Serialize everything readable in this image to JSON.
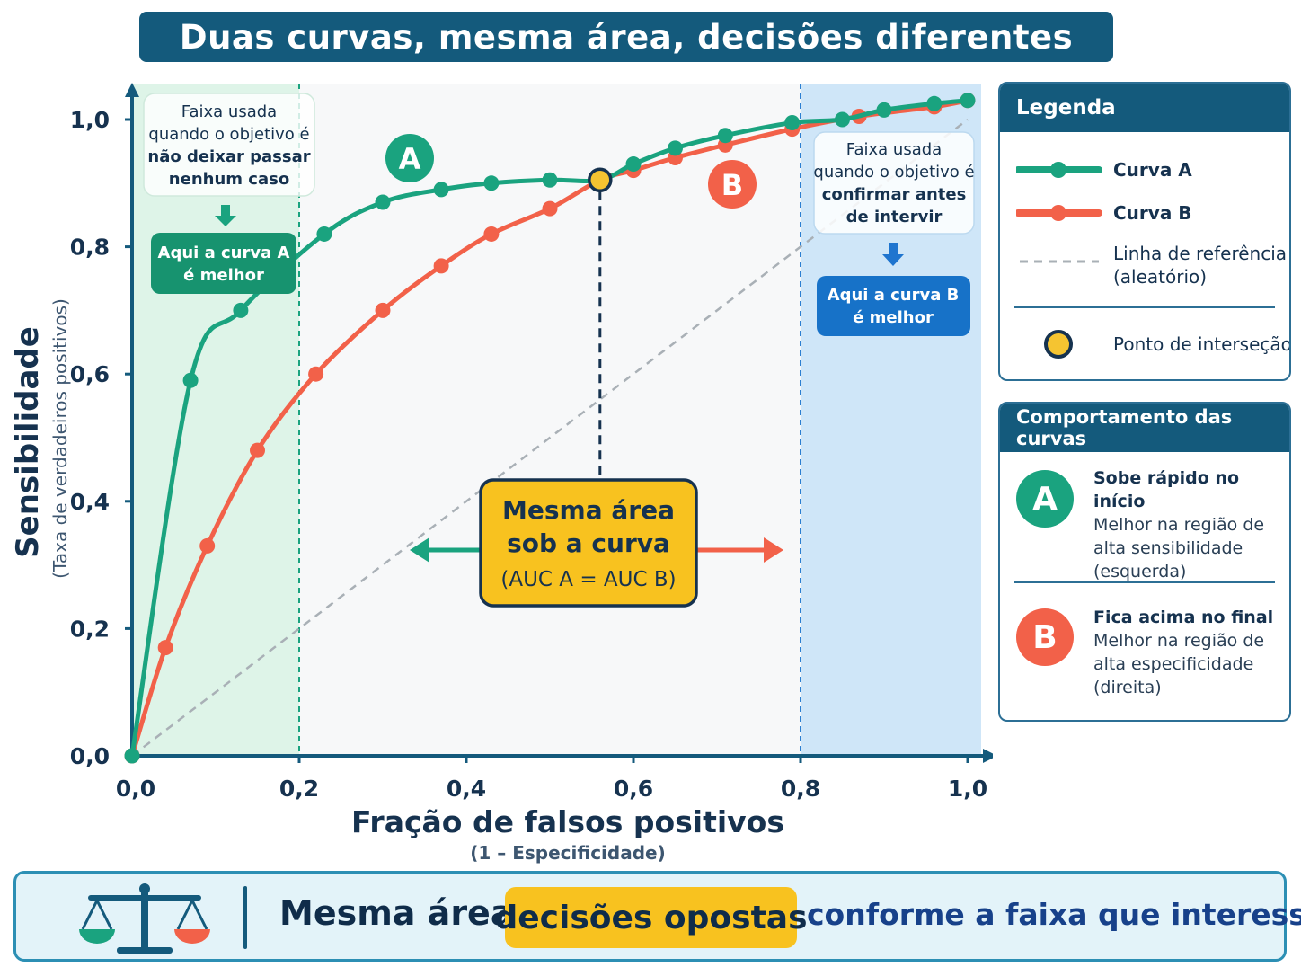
{
  "title": "Duas curvas, mesma área, decisões diferentes",
  "colors": {
    "curve_a": "#1aa37f",
    "curve_b": "#f26149",
    "reference": "#a9b0b6",
    "intersection": "#f5c431",
    "region_left": "#def4e8",
    "region_right": "#cfe6f8",
    "axis": "#145a7c"
  },
  "chart_data": {
    "type": "line",
    "xlabel": "Fração de falsos positivos",
    "xlabel_sub": "(1 – Especificidade)",
    "ylabel": "Sensibilidade",
    "ylabel_sub": "(Taxa de verdadeiros positivos)",
    "xlim": [
      0,
      1
    ],
    "ylim": [
      0,
      1
    ],
    "x_ticks": [
      "0,0",
      "0,2",
      "0,4",
      "0,6",
      "0,8",
      "1,0"
    ],
    "y_ticks": [
      "0,0",
      "0,2",
      "0,4",
      "0,6",
      "0,8",
      "1,0"
    ],
    "series": [
      {
        "name": "Curva A",
        "color": "#1aa37f",
        "points": [
          [
            0,
            0
          ],
          [
            0.07,
            0.59
          ],
          [
            0.13,
            0.7
          ],
          [
            0.23,
            0.82
          ],
          [
            0.3,
            0.87
          ],
          [
            0.37,
            0.89
          ],
          [
            0.43,
            0.9
          ],
          [
            0.5,
            0.905
          ],
          [
            0.56,
            0.905
          ],
          [
            0.6,
            0.93
          ],
          [
            0.65,
            0.955
          ],
          [
            0.71,
            0.975
          ],
          [
            0.79,
            0.995
          ],
          [
            0.85,
            1.0
          ],
          [
            0.9,
            1.015
          ],
          [
            0.96,
            1.025
          ],
          [
            1.0,
            1.03
          ]
        ]
      },
      {
        "name": "Curva B",
        "color": "#f26149",
        "points": [
          [
            0,
            0
          ],
          [
            0.04,
            0.17
          ],
          [
            0.09,
            0.33
          ],
          [
            0.15,
            0.48
          ],
          [
            0.22,
            0.6
          ],
          [
            0.3,
            0.7
          ],
          [
            0.37,
            0.77
          ],
          [
            0.43,
            0.82
          ],
          [
            0.5,
            0.86
          ],
          [
            0.56,
            0.905
          ],
          [
            0.6,
            0.92
          ],
          [
            0.65,
            0.94
          ],
          [
            0.71,
            0.96
          ],
          [
            0.79,
            0.985
          ],
          [
            0.87,
            1.005
          ],
          [
            0.96,
            1.02
          ],
          [
            1.0,
            1.03
          ]
        ]
      },
      {
        "name": "Linha de referência (aleatório)",
        "color": "#a9b0b6",
        "dashed": true,
        "points": [
          [
            0,
            0
          ],
          [
            1,
            1
          ]
        ]
      }
    ],
    "intersection": [
      0.56,
      0.905
    ],
    "regions": [
      {
        "from": 0,
        "to": 0.2,
        "color": "#def4e8"
      },
      {
        "from": 0.8,
        "to": 1.0,
        "color": "#cfe6f8"
      }
    ],
    "annotations": {
      "left_note": [
        "Faixa usada",
        "quando o objetivo é",
        "não deixar passar",
        "nenhum caso"
      ],
      "left_tag": [
        "Aqui a curva A",
        "é melhor"
      ],
      "right_note": [
        "Faixa usada",
        "quando o objetivo é",
        "confirmar antes",
        "de intervir"
      ],
      "right_tag": [
        "Aqui a curva B",
        "é melhor"
      ],
      "center_box": [
        "Mesma área",
        "sob a curva",
        "(AUC A = AUC B)"
      ],
      "badge_a": "A",
      "badge_b": "B"
    }
  },
  "legend": {
    "title": "Legenda",
    "curve_a": "Curva A",
    "curve_b": "Curva B",
    "reference_line1": "Linha de referência",
    "reference_line2": "(aleatório)",
    "intersection": "Ponto de interseção"
  },
  "behavior": {
    "title": "Comportamento das curvas",
    "a": {
      "badge": "A",
      "heading": "Sobe rápido no início",
      "lines": [
        "Melhor na região de",
        "alta sensibilidade",
        "(esquerda)"
      ]
    },
    "b": {
      "badge": "B",
      "heading": "Fica acima no final",
      "lines": [
        "Melhor na região de",
        "alta especificidade",
        "(direita)"
      ]
    }
  },
  "bottom": {
    "part1": "Mesma área,",
    "highlight": "decisões opostas",
    "part2": "conforme a faixa que interessa."
  },
  "icons": {
    "scale": "balance-scale-icon",
    "down_arrow": "arrow-down-icon",
    "left_arrow": "arrow-left-icon",
    "right_arrow": "arrow-right-icon"
  }
}
